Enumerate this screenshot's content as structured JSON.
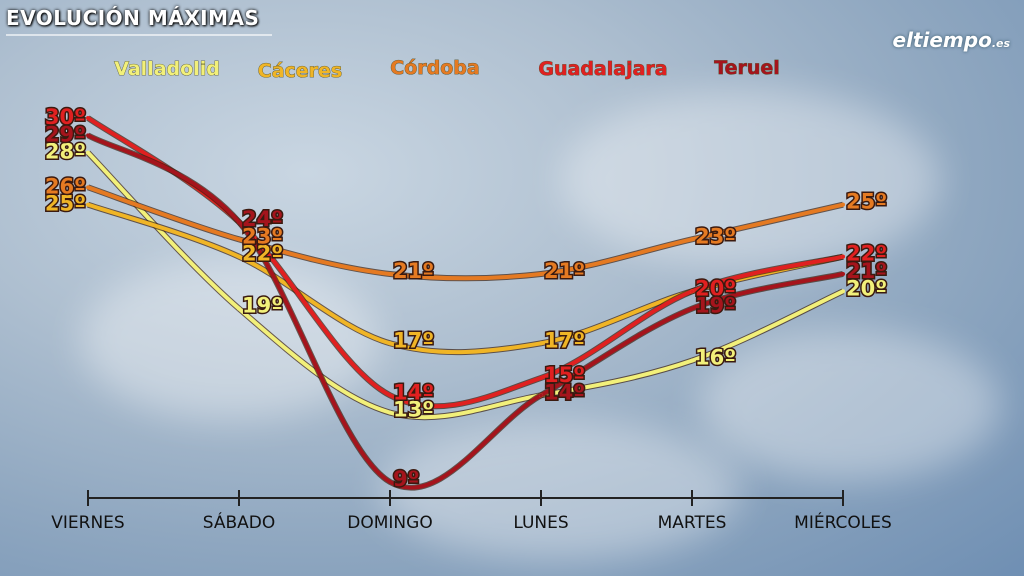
{
  "title": "EVOLUCIÓN MÁXIMAS",
  "brand": {
    "name": "eltiempo",
    ".es": ".es"
  },
  "chart_data": {
    "type": "line",
    "title": "EVOLUCIÓN MÁXIMAS",
    "categories": [
      "VIERNES",
      "SÁBADO",
      "DOMINGO",
      "LUNES",
      "MARTES",
      "MIÉRCOLES"
    ],
    "unit": "º",
    "ylim": [
      9,
      30
    ],
    "series": [
      {
        "name": "Valladolid",
        "color": "#f2f07a",
        "values": [
          28,
          19,
          13,
          14,
          16,
          20
        ],
        "labels": [
          true,
          true,
          true,
          false,
          true,
          true
        ]
      },
      {
        "name": "Cáceres",
        "color": "#f0b526",
        "values": [
          25,
          22,
          17,
          17,
          20,
          22
        ],
        "labels": [
          true,
          true,
          true,
          true,
          false,
          false
        ]
      },
      {
        "name": "Córdoba",
        "color": "#e57a22",
        "values": [
          26,
          23,
          21,
          21,
          23,
          25
        ],
        "labels": [
          true,
          true,
          true,
          true,
          true,
          true
        ]
      },
      {
        "name": "Guadalajara",
        "color": "#e02020",
        "values": [
          30,
          24,
          14,
          15,
          20,
          22
        ],
        "labels": [
          true,
          false,
          true,
          true,
          true,
          true
        ]
      },
      {
        "name": "Teruel",
        "color": "#a5141c",
        "values": [
          29,
          24,
          9,
          14,
          19,
          21
        ],
        "labels": [
          true,
          true,
          true,
          true,
          true,
          true
        ]
      }
    ]
  }
}
